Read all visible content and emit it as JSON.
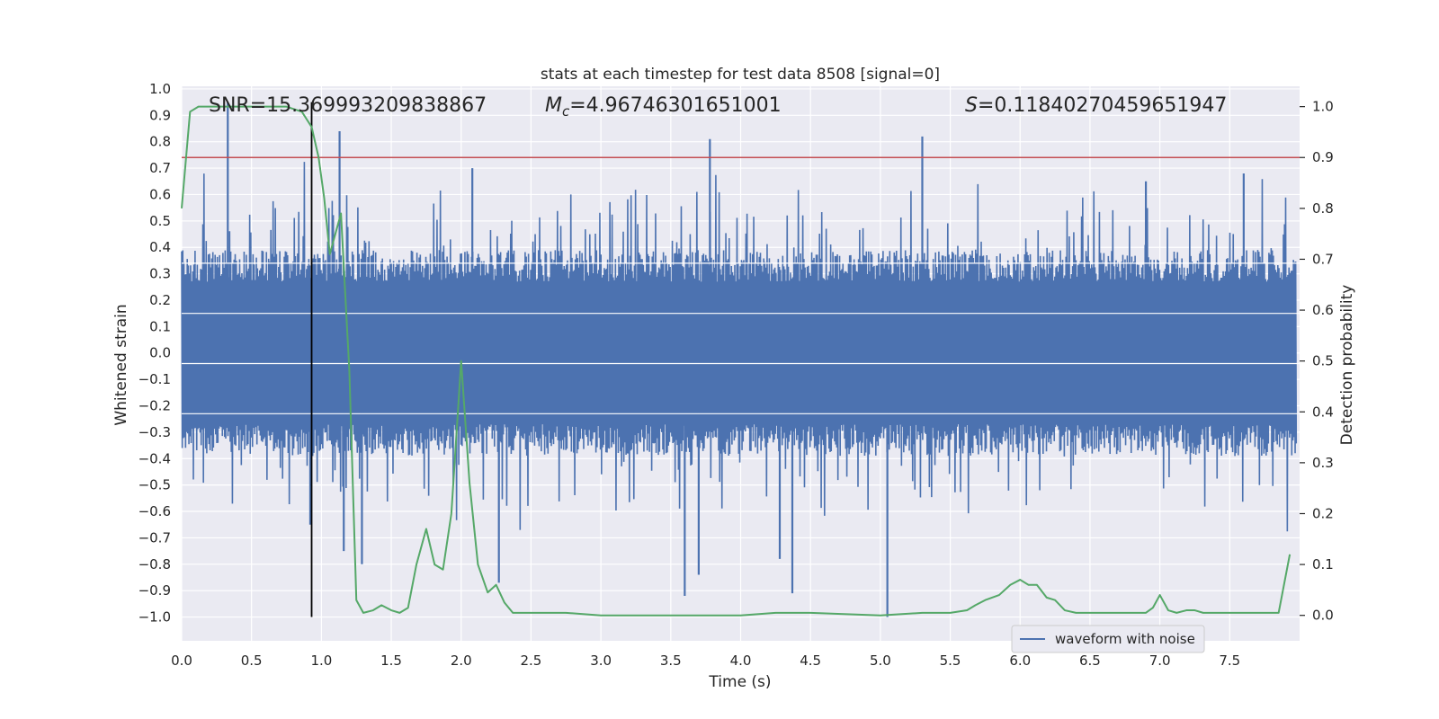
{
  "chart_data": {
    "type": "line",
    "title": "stats at each timestep for test data 8508 [signal=0]",
    "xlabel": "Time (s)",
    "ylabel_left": "Whitened strain",
    "ylabel_right": "Detection probability",
    "xlim": [
      0.0,
      8.0
    ],
    "ylim_left": [
      -1.09,
      1.01
    ],
    "ylim_right": [
      -0.05,
      1.04
    ],
    "x_ticks": [
      "0.0",
      "0.5",
      "1.0",
      "1.5",
      "2.0",
      "2.5",
      "3.0",
      "3.5",
      "4.0",
      "4.5",
      "5.0",
      "5.5",
      "6.0",
      "6.5",
      "7.0",
      "7.5"
    ],
    "y_left_ticks": [
      "1.0",
      "0.9",
      "0.8",
      "0.7",
      "0.6",
      "0.5",
      "0.4",
      "0.3",
      "0.2",
      "0.1",
      "0.0",
      "−0.1",
      "−0.2",
      "−0.3",
      "−0.4",
      "−0.5",
      "−0.6",
      "−0.7",
      "−0.8",
      "−0.9",
      "−1.0"
    ],
    "y_right_ticks": [
      "1.0",
      "0.9",
      "0.8",
      "0.7",
      "0.6",
      "0.5",
      "0.4",
      "0.3",
      "0.2",
      "0.1",
      "0.0"
    ],
    "annotations": {
      "snr": "SNR=15.369993209838867",
      "mc_symbol": "M",
      "mc_sub": "c",
      "mc_value": "=4.96746301651001",
      "s_symbol": "S",
      "s_value": "=0.11840270459651947"
    },
    "threshold_prob": 0.9,
    "vline_time": 0.93,
    "legend": [
      "waveform with noise"
    ],
    "series": [
      {
        "name": "waveform with noise",
        "axis": "left",
        "color": "#4c72b0",
        "style": "dense noise, amplitude envelope ~0.35 with spikes",
        "spikes": [
          {
            "x": 0.33,
            "y": 0.95
          },
          {
            "x": 1.13,
            "y": 0.84
          },
          {
            "x": 3.78,
            "y": 0.81
          },
          {
            "x": 5.3,
            "y": 0.82
          },
          {
            "x": 5.05,
            "y": -1.0
          },
          {
            "x": 3.6,
            "y": -0.92
          },
          {
            "x": 4.37,
            "y": -0.91
          },
          {
            "x": 2.27,
            "y": -0.87
          },
          {
            "x": 1.16,
            "y": -0.75
          },
          {
            "x": 3.7,
            "y": -0.84
          },
          {
            "x": 4.28,
            "y": -0.78
          },
          {
            "x": 2.08,
            "y": 0.7
          },
          {
            "x": 0.92,
            "y": -0.65
          },
          {
            "x": 1.29,
            "y": -0.8
          },
          {
            "x": 6.9,
            "y": 0.65
          },
          {
            "x": 7.6,
            "y": 0.68
          }
        ]
      },
      {
        "name": "detection probability",
        "axis": "right",
        "color": "#55a868",
        "x": [
          0.0,
          0.06,
          0.12,
          0.2,
          0.3,
          0.45,
          0.6,
          0.75,
          0.86,
          0.93,
          0.98,
          1.02,
          1.06,
          1.1,
          1.14,
          1.2,
          1.25,
          1.3,
          1.37,
          1.43,
          1.5,
          1.56,
          1.62,
          1.68,
          1.75,
          1.81,
          1.87,
          1.93,
          2.0,
          2.06,
          2.12,
          2.19,
          2.25,
          2.31,
          2.37,
          2.5,
          2.75,
          3.0,
          3.25,
          3.5,
          4.0,
          4.25,
          4.5,
          5.0,
          5.3,
          5.5,
          5.62,
          5.68,
          5.75,
          5.85,
          5.93,
          6.0,
          6.06,
          6.12,
          6.19,
          6.25,
          6.32,
          6.4,
          6.5,
          6.75,
          6.9,
          6.95,
          7.0,
          7.06,
          7.12,
          7.19,
          7.25,
          7.31,
          7.5,
          7.75,
          7.85,
          7.93
        ],
        "y": [
          0.8,
          0.99,
          1.0,
          1.0,
          1.0,
          1.0,
          1.0,
          1.0,
          0.99,
          0.96,
          0.9,
          0.82,
          0.71,
          0.75,
          0.79,
          0.48,
          0.03,
          0.005,
          0.01,
          0.02,
          0.01,
          0.005,
          0.015,
          0.1,
          0.17,
          0.1,
          0.09,
          0.2,
          0.5,
          0.26,
          0.1,
          0.045,
          0.06,
          0.025,
          0.005,
          0.005,
          0.005,
          0.0,
          0.0,
          0.0,
          0.0,
          0.005,
          0.005,
          0.0,
          0.005,
          0.005,
          0.01,
          0.02,
          0.03,
          0.04,
          0.06,
          0.07,
          0.06,
          0.06,
          0.035,
          0.03,
          0.01,
          0.005,
          0.005,
          0.005,
          0.005,
          0.015,
          0.04,
          0.01,
          0.005,
          0.01,
          0.01,
          0.005,
          0.005,
          0.005,
          0.005,
          0.12
        ]
      }
    ]
  }
}
